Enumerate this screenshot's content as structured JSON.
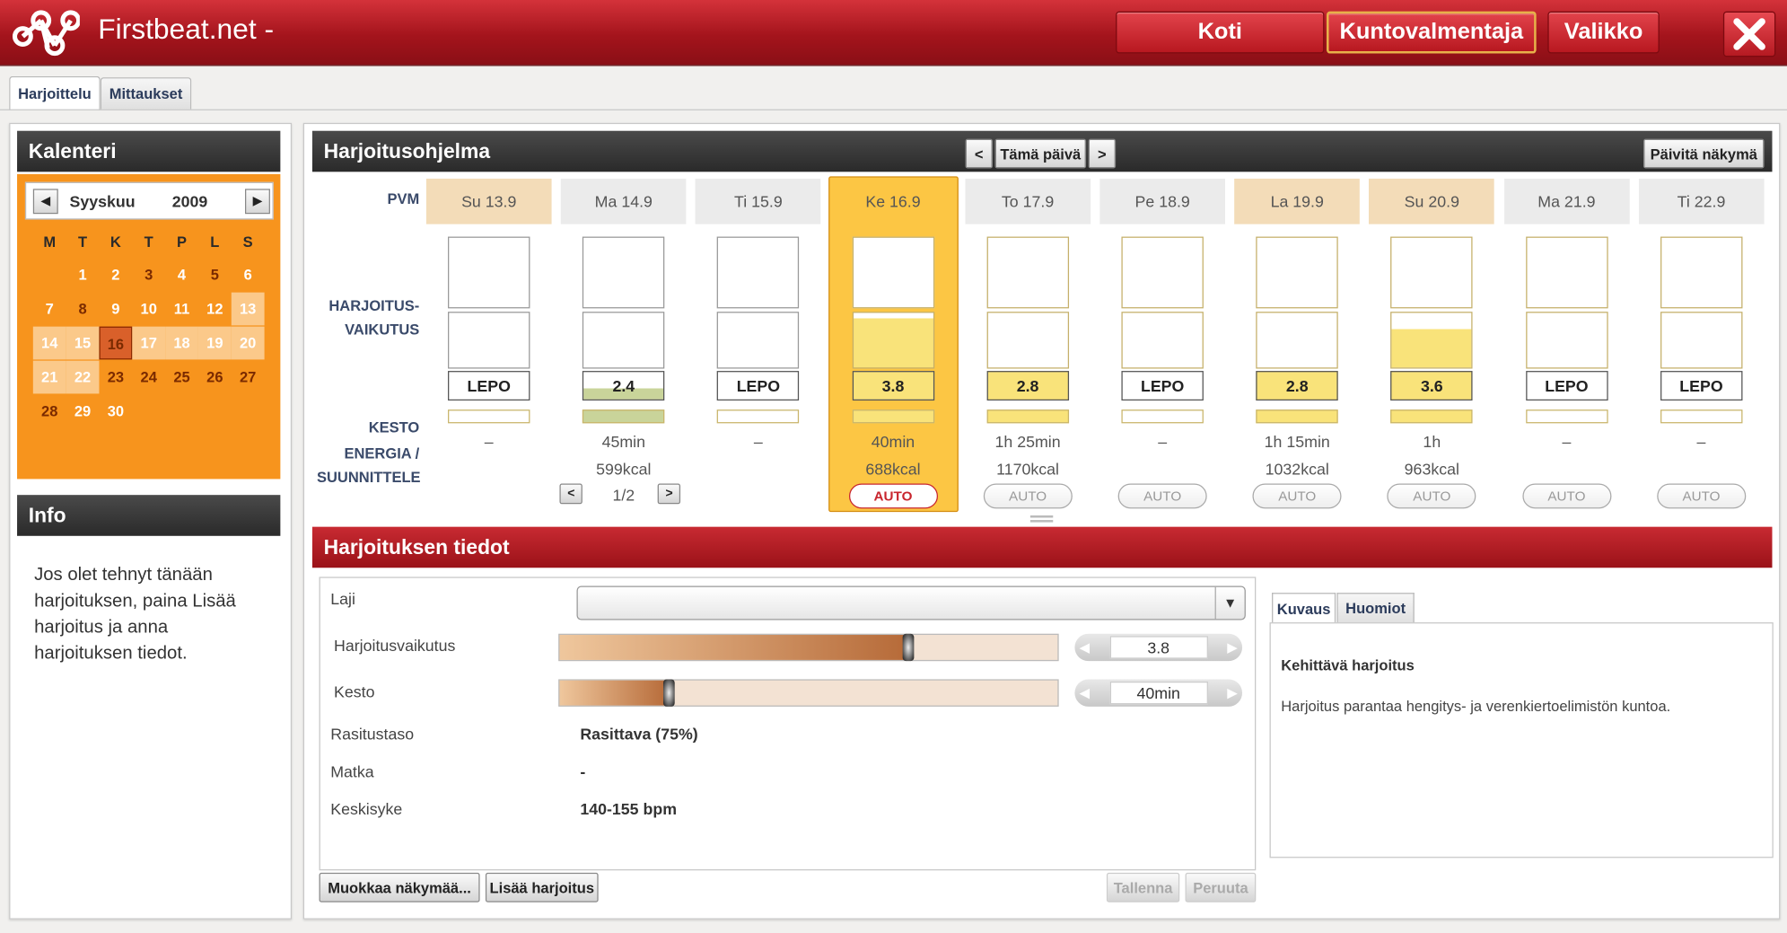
{
  "app": {
    "title": "Firstbeat.net -"
  },
  "nav": {
    "home": "Koti",
    "coach": "Kuntovalmentaja",
    "menu": "Valikko"
  },
  "tabs": [
    "Harjoittelu",
    "Mittaukset"
  ],
  "calendar": {
    "title": "Kalenteri",
    "month": "Syyskuu",
    "year": "2009",
    "weekdays": [
      "M",
      "T",
      "K",
      "T",
      "P",
      "L",
      "S"
    ],
    "days": [
      "1",
      "2",
      "3",
      "4",
      "5",
      "6",
      "7",
      "8",
      "9",
      "10",
      "11",
      "12",
      "13",
      "14",
      "15",
      "16",
      "17",
      "18",
      "19",
      "20",
      "21",
      "22",
      "23",
      "24",
      "25",
      "26",
      "27",
      "28",
      "29",
      "30"
    ],
    "selected_day": "16"
  },
  "info": {
    "title": "Info",
    "text": "Jos olet tehnyt tänään harjoituksen, paina Lisää harjoitus ja anna harjoituksen tiedot."
  },
  "program": {
    "title": "Harjoitusohjelma",
    "prev": "<",
    "today": "Tämä päivä",
    "next": ">",
    "refresh": "Päivitä näkymä",
    "row_labels": {
      "date": "PVM",
      "effect_1": "HARJOITUS-",
      "effect_2": "VAIKUTUS",
      "duration": "KESTO",
      "energy_1": "ENERGIA /",
      "energy_2": "SUUNNITTELE"
    },
    "days": [
      {
        "date": "Su 13.9",
        "value": "LEPO",
        "duration": "–",
        "energy": "",
        "auto": ""
      },
      {
        "date": "Ma 14.9",
        "value": "2.4",
        "duration": "45min",
        "energy": "599kcal",
        "auto": "",
        "pager": "1/2"
      },
      {
        "date": "Ti 15.9",
        "value": "LEPO",
        "duration": "–",
        "energy": "",
        "auto": ""
      },
      {
        "date": "Ke 16.9",
        "value": "3.8",
        "duration": "40min",
        "energy": "688kcal",
        "auto": "AUTO"
      },
      {
        "date": "To 17.9",
        "value": "2.8",
        "duration": "1h 25min",
        "energy": "1170kcal",
        "auto": "AUTO"
      },
      {
        "date": "Pe 18.9",
        "value": "LEPO",
        "duration": "–",
        "energy": "",
        "auto": "AUTO"
      },
      {
        "date": "La 19.9",
        "value": "2.8",
        "duration": "1h 15min",
        "energy": "1032kcal",
        "auto": "AUTO"
      },
      {
        "date": "Su 20.9",
        "value": "3.6",
        "duration": "1h",
        "energy": "963kcal",
        "auto": "AUTO"
      },
      {
        "date": "Ma 21.9",
        "value": "LEPO",
        "duration": "–",
        "energy": "",
        "auto": "AUTO"
      },
      {
        "date": "Ti 22.9",
        "value": "LEPO",
        "duration": "–",
        "energy": "",
        "auto": "AUTO"
      }
    ],
    "pager_prev": "<",
    "pager_next": ">"
  },
  "details": {
    "title": "Harjoituksen tiedot",
    "sport_label": "Laji",
    "sport_value": "",
    "effect_label": "Harjoitusvaikutus",
    "effect_value": "3.8",
    "effect_fraction": 0.7,
    "duration_label": "Kesto",
    "duration_value": "40min",
    "duration_fraction": 0.22,
    "load_label": "Rasitustaso",
    "load_value": "Rasittava (75%)",
    "distance_label": "Matka",
    "distance_value": "-",
    "hr_label": "Keskisyke",
    "hr_value": "140-155 bpm",
    "edit_btn": "Muokkaa näkymää...",
    "add_btn": "Lisää harjoitus",
    "save_btn": "Tallenna",
    "cancel_btn": "Peruuta"
  },
  "description": {
    "tabs": [
      "Kuvaus",
      "Huomiot"
    ],
    "heading": "Kehittävä harjoitus",
    "text": "Harjoitus parantaa hengitys- ja verenkiertoelimistön kuntoa."
  },
  "colors": {
    "brand_red": "#b81c24",
    "calendar_orange": "#f7941d",
    "selected_yellow": "#fcc644",
    "weekend": "#f3dcb8"
  }
}
